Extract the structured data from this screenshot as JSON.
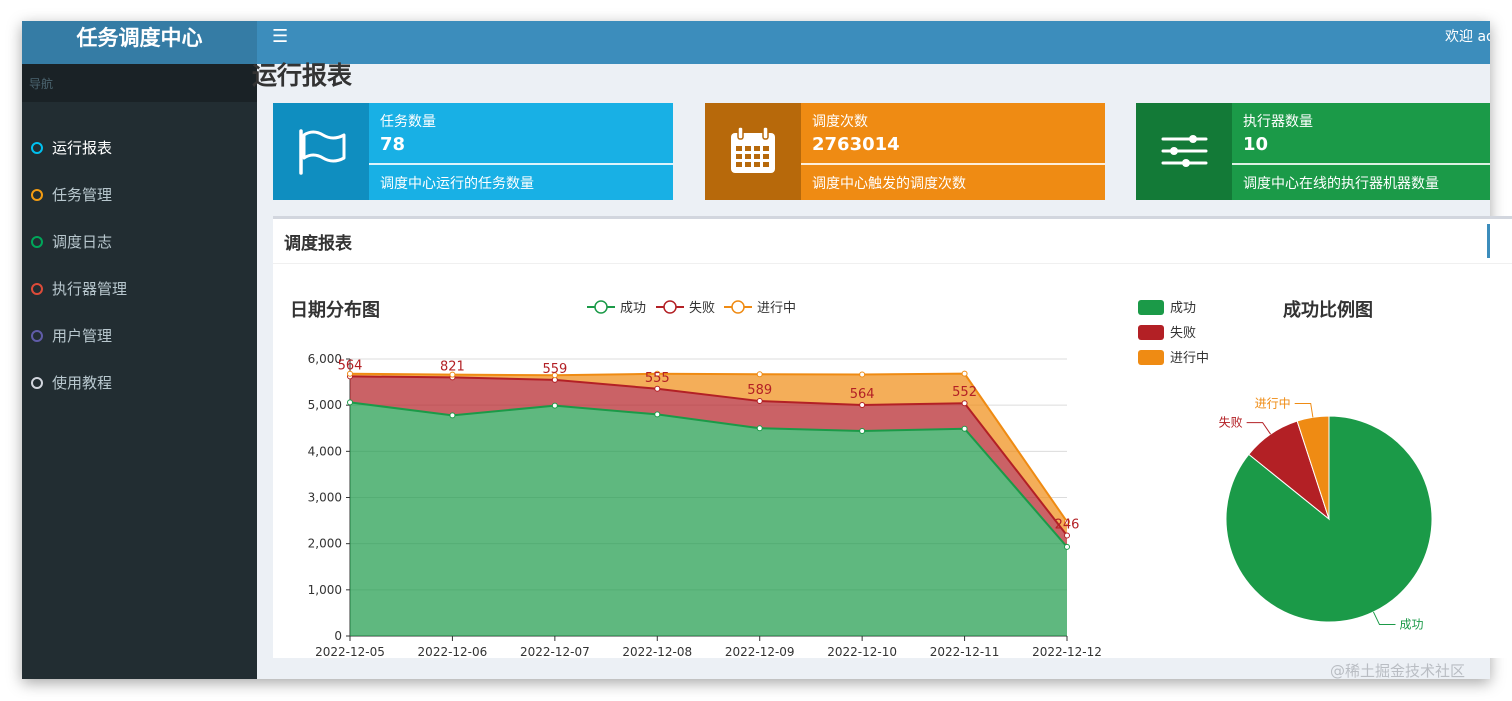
{
  "app_title": "任务调度中心",
  "topbar": {
    "menu_icon": "bars-icon",
    "welcome_text": "欢迎 admin"
  },
  "sidebar": {
    "header": "导航",
    "items": [
      {
        "label": "运行报表",
        "ring_color": "#00c0ef",
        "active": true
      },
      {
        "label": "任务管理",
        "ring_color": "#f39c12",
        "active": false
      },
      {
        "label": "调度日志",
        "ring_color": "#00a65a",
        "active": false
      },
      {
        "label": "执行器管理",
        "ring_color": "#dd4b39",
        "active": false
      },
      {
        "label": "用户管理",
        "ring_color": "#605ca8",
        "active": false
      },
      {
        "label": "使用教程",
        "ring_color": "#d2d6de",
        "active": false
      }
    ]
  },
  "page_title": "运行报表",
  "info_boxes": [
    {
      "icon": "flag-icon",
      "label": "任务数量",
      "value": "78",
      "desc": "调度中心运行的任务数量",
      "color": "#18b0e5",
      "dark_color": "#0f8ec0"
    },
    {
      "icon": "calendar-icon",
      "label": "调度次数",
      "value": "2763014",
      "desc": "调度中心触发的调度次数",
      "color": "#ef8b13",
      "dark_color": "#b7690b"
    },
    {
      "icon": "sliders-icon",
      "label": "执行器数量",
      "value": "10",
      "desc": "调度中心在线的执行器机器数量",
      "color": "#1b9a48",
      "dark_color": "#137a37"
    }
  ],
  "report_panel_title": "调度报表",
  "chart_data": [
    {
      "type": "area",
      "stacked": true,
      "title": "日期分布图",
      "categories": [
        "2022-12-05",
        "2022-12-06",
        "2022-12-07",
        "2022-12-08",
        "2022-12-09",
        "2022-12-10",
        "2022-12-11",
        "2022-12-12"
      ],
      "series": [
        {
          "name": "成功",
          "color": "#1b9a48",
          "values": [
            5060,
            4780,
            4990,
            4800,
            4500,
            4440,
            4490,
            1930
          ]
        },
        {
          "name": "失败",
          "color": "#b32025",
          "values": [
            564,
            821,
            559,
            555,
            589,
            564,
            552,
            246
          ]
        },
        {
          "name": "进行中",
          "color": "#ef8b13",
          "values": [
            56,
            60,
            100,
            325,
            580,
            660,
            640,
            300
          ]
        }
      ],
      "data_labels_series": "失败",
      "yticks": [
        "0",
        "1,000",
        "2,000",
        "3,000",
        "4,000",
        "5,000",
        "6,000"
      ],
      "ylim": [
        0,
        6000
      ],
      "legend": "top-center",
      "grid": true
    },
    {
      "type": "pie",
      "title": "成功比例图",
      "slices": [
        {
          "name": "成功",
          "value": 0.858,
          "color": "#1b9a48"
        },
        {
          "name": "失败",
          "value": 0.092,
          "color": "#b32025"
        },
        {
          "name": "进行中",
          "value": 0.05,
          "color": "#ef8b13"
        }
      ],
      "legend": "top-left"
    }
  ],
  "watermark": "@稀土掘金技术社区"
}
